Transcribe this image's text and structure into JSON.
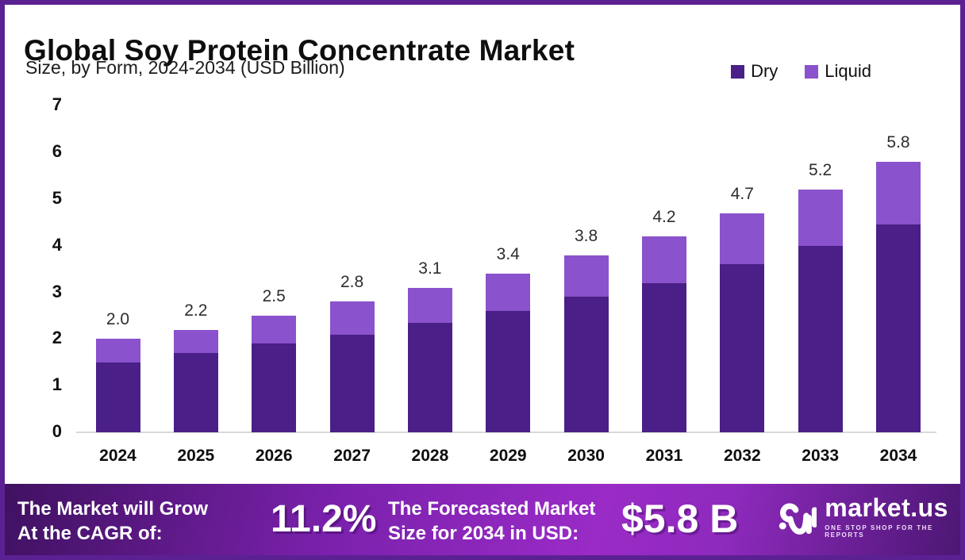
{
  "header": {
    "title": "Global Soy Protein Concentrate Market",
    "subtitle": "Size, by Form, 2024-2034 (USD Billion)"
  },
  "chart_data": {
    "type": "bar",
    "stacked": true,
    "title": "Global Soy Protein Concentrate Market",
    "subtitle": "Size, by Form, 2024-2034 (USD Billion)",
    "categories": [
      "2024",
      "2025",
      "2026",
      "2027",
      "2028",
      "2029",
      "2030",
      "2031",
      "2032",
      "2033",
      "2034"
    ],
    "series": [
      {
        "name": "Dry",
        "color": "#4a1f87",
        "values": [
          1.5,
          1.7,
          1.9,
          2.1,
          2.35,
          2.6,
          2.9,
          3.2,
          3.6,
          4.0,
          4.45
        ]
      },
      {
        "name": "Liquid",
        "color": "#8a52cc",
        "values": [
          0.5,
          0.5,
          0.6,
          0.7,
          0.75,
          0.8,
          0.9,
          1.0,
          1.1,
          1.2,
          1.35
        ]
      }
    ],
    "total_labels": [
      "2.0",
      "2.2",
      "2.5",
      "2.8",
      "3.1",
      "3.4",
      "3.8",
      "4.2",
      "4.7",
      "5.2",
      "5.8"
    ],
    "ylim": [
      0,
      7
    ],
    "yticks": [
      0,
      1,
      2,
      3,
      4,
      5,
      6,
      7
    ],
    "grid": false,
    "legend_position": "top-right",
    "unit": "USD Billion"
  },
  "banner": {
    "cagr_label_line1": "The Market will Grow",
    "cagr_label_line2": "At the CAGR of:",
    "cagr_value": "11.2%",
    "forecast_label_line1": "The Forecasted Market",
    "forecast_label_line2": "Size for 2034 in USD:",
    "forecast_value": "$5.8 B",
    "logo_text": "market.us",
    "logo_tagline": "ONE STOP SHOP FOR THE REPORTS"
  },
  "colors": {
    "dry": "#4a1f87",
    "liquid": "#8a52cc",
    "frame_border": "#5b2193",
    "banner_gradient_start": "#3f1160",
    "banner_gradient_mid": "#9a2bc6",
    "banner_gradient_end": "#4b1672",
    "axis_line": "#d8d8d8"
  }
}
